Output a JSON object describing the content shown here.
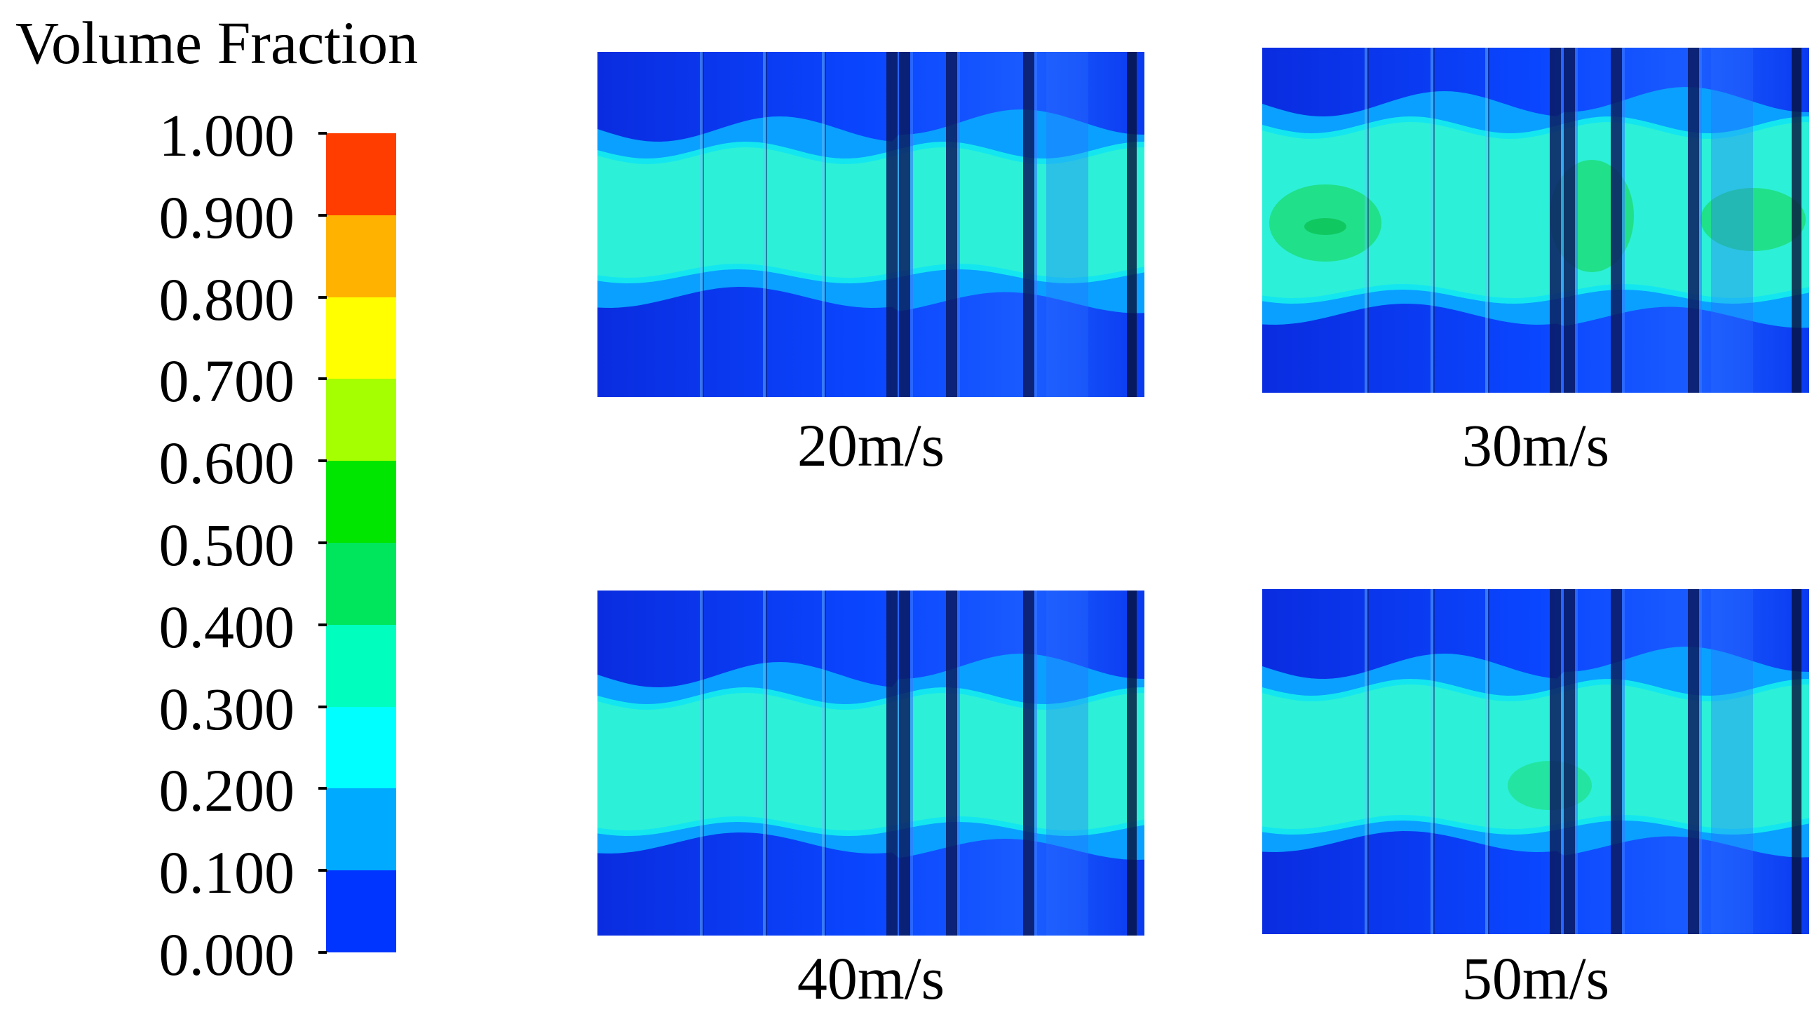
{
  "legend": {
    "title": "Volume Fraction",
    "ticks": [
      "1.000",
      "0.900",
      "0.800",
      "0.700",
      "0.600",
      "0.500",
      "0.400",
      "0.300",
      "0.200",
      "0.100",
      "0.000"
    ],
    "colors": [
      "#ff3d00",
      "#ffb300",
      "#ffff00",
      "#a6ff00",
      "#00e600",
      "#00e65c",
      "#00ffbf",
      "#00ffff",
      "#00aaff",
      "#0035ff"
    ]
  },
  "panels": [
    {
      "caption": "20m/s",
      "velocity": 20
    },
    {
      "caption": "30m/s",
      "velocity": 30
    },
    {
      "caption": "40m/s",
      "velocity": 40
    },
    {
      "caption": "50m/s",
      "velocity": 50
    }
  ]
}
